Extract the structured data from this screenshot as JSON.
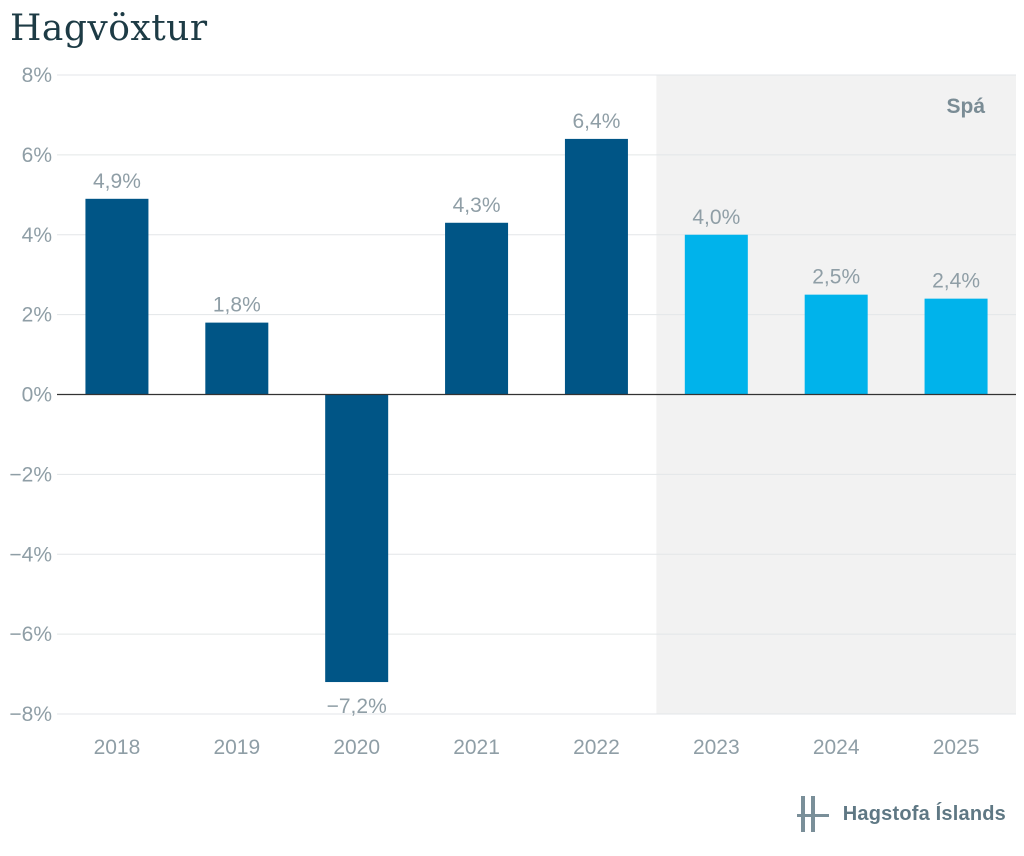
{
  "chart_data": {
    "type": "bar",
    "title": "Hagvöxtur",
    "xlabel": "",
    "ylabel": "",
    "categories": [
      "2018",
      "2019",
      "2020",
      "2021",
      "2022",
      "2023",
      "2024",
      "2025"
    ],
    "values": [
      4.9,
      1.8,
      -7.2,
      4.3,
      6.4,
      4.0,
      2.5,
      2.4
    ],
    "value_labels": [
      "4,9%",
      "1,8%",
      "−7,2%",
      "4,3%",
      "6,4%",
      "4,0%",
      "2,5%",
      "2,4%"
    ],
    "forecast_start_index": 5,
    "forecast_label": "Spá",
    "ylim": [
      -8,
      8
    ],
    "yticks": [
      8,
      6,
      4,
      2,
      0,
      -2,
      -4,
      -6,
      -8
    ],
    "ytick_labels": [
      "8%",
      "6%",
      "4%",
      "2%",
      "0%",
      "−2%",
      "−4%",
      "−6%",
      "−8%"
    ],
    "colors": {
      "actual": "#005586",
      "forecast": "#00b3eb",
      "forecast_band": "#f2f2f2",
      "grid": "#e3e6e8",
      "zero_line": "#333333",
      "label": "#8f9ea6"
    }
  },
  "brand": {
    "name": "Hagstofa Íslands",
    "logo": "hagstofa-logo-icon"
  }
}
